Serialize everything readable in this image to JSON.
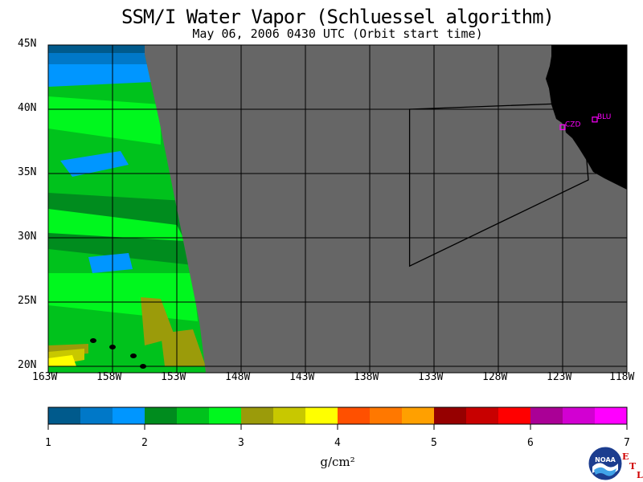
{
  "title": "SSM/I Water Vapor (Schluessel algorithm)",
  "subtitle": "May 06, 2006  0430 UTC  (Orbit start time)",
  "map": {
    "lon_range": [
      -163,
      -118
    ],
    "lat_range": [
      19.5,
      45
    ],
    "lat_ticks": [
      {
        "value": 45,
        "label": "45N"
      },
      {
        "value": 40,
        "label": "40N"
      },
      {
        "value": 35,
        "label": "35N"
      },
      {
        "value": 30,
        "label": "30N"
      },
      {
        "value": 25,
        "label": "25N"
      },
      {
        "value": 20,
        "label": "20N"
      }
    ],
    "lon_ticks": [
      {
        "value": -163,
        "label": "163W"
      },
      {
        "value": -158,
        "label": "158W"
      },
      {
        "value": -153,
        "label": "153W"
      },
      {
        "value": -148,
        "label": "148W"
      },
      {
        "value": -143,
        "label": "143W"
      },
      {
        "value": -138,
        "label": "138W"
      },
      {
        "value": -133,
        "label": "133W"
      },
      {
        "value": -128,
        "label": "128W"
      },
      {
        "value": -123,
        "label": "123W"
      },
      {
        "value": -118,
        "label": "118W"
      }
    ],
    "stations": [
      {
        "id": "CZD",
        "lon": -123.0,
        "lat": 38.6
      },
      {
        "id": "BLU",
        "lon": -120.5,
        "lat": 39.2
      }
    ],
    "domain_outline": [
      [
        -134.9,
        40.0
      ],
      [
        -121.5,
        40.5
      ],
      [
        -121.0,
        34.5
      ],
      [
        -134.9,
        27.8
      ]
    ],
    "colors": {
      "no_data": "#666666",
      "land": "#000000",
      "grid": "#000000",
      "station": "#ff00ff"
    }
  },
  "colorbar": {
    "min": 1,
    "max": 7,
    "tick_labels": [
      "1",
      "2",
      "3",
      "4",
      "5",
      "6",
      "7"
    ],
    "units": "g/cm²",
    "colors": [
      "#005a8c",
      "#0078c8",
      "#0096ff",
      "#008c1e",
      "#00c21c",
      "#00f71e",
      "#9b9b0a",
      "#c8c800",
      "#ffff00",
      "#ff5000",
      "#ff7800",
      "#ffa000",
      "#960000",
      "#c80000",
      "#ff0000",
      "#aa0096",
      "#d200d2",
      "#ff00ff"
    ]
  },
  "logo": {
    "text": "NOAA",
    "mark": "E T L"
  }
}
